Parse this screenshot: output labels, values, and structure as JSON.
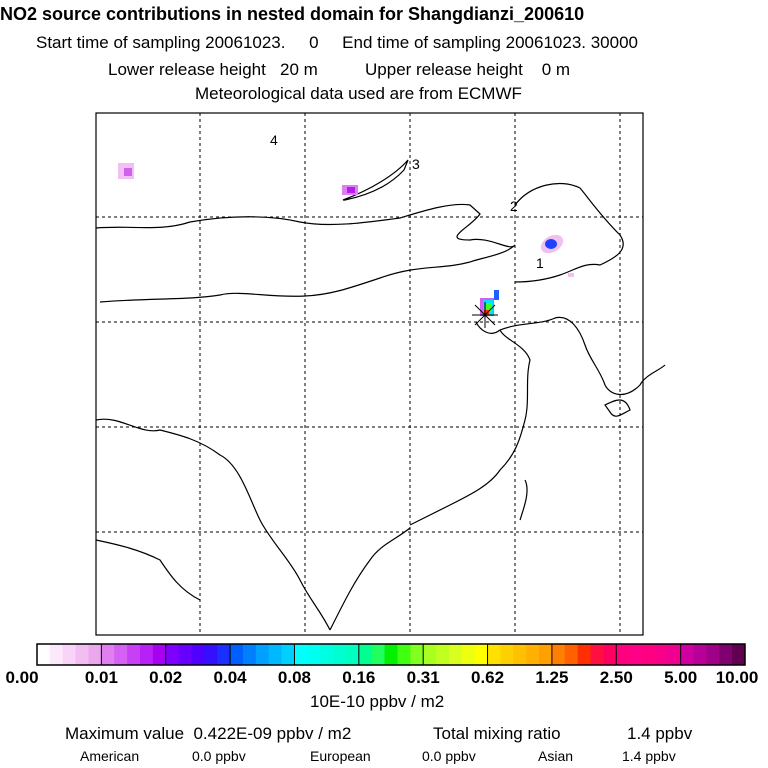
{
  "header": {
    "title": "NO2 source contributions in nested domain for Shangdianzi_200610",
    "line1": "Start time of sampling 20061023.     0     End time of sampling 20061023. 30000",
    "line2": "Lower release height   20 m          Upper release height    0 m",
    "line3": "Meteorological data used are from ECMWF"
  },
  "map": {
    "region_labels": [
      "4",
      "3",
      "2",
      "1"
    ],
    "station": "Shangdianzi"
  },
  "colorbar": {
    "labels": [
      "0.00",
      "0.01",
      "0.02",
      "0.04",
      "0.08",
      "0.16",
      "0.31",
      "0.62",
      "1.25",
      "2.50",
      "5.00",
      "10.00"
    ],
    "unit": "10E-10 ppbv / m2",
    "colors": [
      [
        "#ffffff",
        "#fce8fc",
        "#f8d4f8",
        "#f2bef2",
        "#eca8ec"
      ],
      [
        "#e080f0",
        "#d460f4",
        "#c840f6",
        "#b820f8",
        "#a800f0"
      ],
      [
        "#8000ff",
        "#6800ff",
        "#5000ff",
        "#3410ff",
        "#1a30ff"
      ],
      [
        "#0060ff",
        "#0080ff",
        "#00a0ff",
        "#00b8ff",
        "#00d0ff"
      ],
      [
        "#00ffff",
        "#00fff0",
        "#00ffe0",
        "#00ffd0",
        "#00ffc0"
      ],
      [
        "#00ff90",
        "#20ff60",
        "#00f000",
        "#40ff10",
        "#80ff20"
      ],
      [
        "#a8ff20",
        "#c0ff20",
        "#d8ff20",
        "#eeff10",
        "#ffff00"
      ],
      [
        "#ffe000",
        "#ffd000",
        "#ffc000",
        "#ffb000",
        "#ffa000"
      ],
      [
        "#ff8000",
        "#ff6000",
        "#ff3000",
        "#ff1040",
        "#ff0060"
      ],
      [
        "#ff0080",
        "#ff0088",
        "#ff0080",
        "#f80088",
        "#f00090"
      ],
      [
        "#d000a0",
        "#b80098",
        "#a00088",
        "#800070",
        "#600050"
      ]
    ]
  },
  "summary": {
    "max_label": "Maximum value  0.422E-09 ppbv / m2",
    "total_label": "Total mixing ratio",
    "total_value": "1.4 ppbv",
    "american_label": "American",
    "american_value": "0.0 ppbv",
    "european_label": "European",
    "european_value": "0.0 ppbv",
    "asian_label": "Asian",
    "asian_value": "1.4 ppbv"
  }
}
